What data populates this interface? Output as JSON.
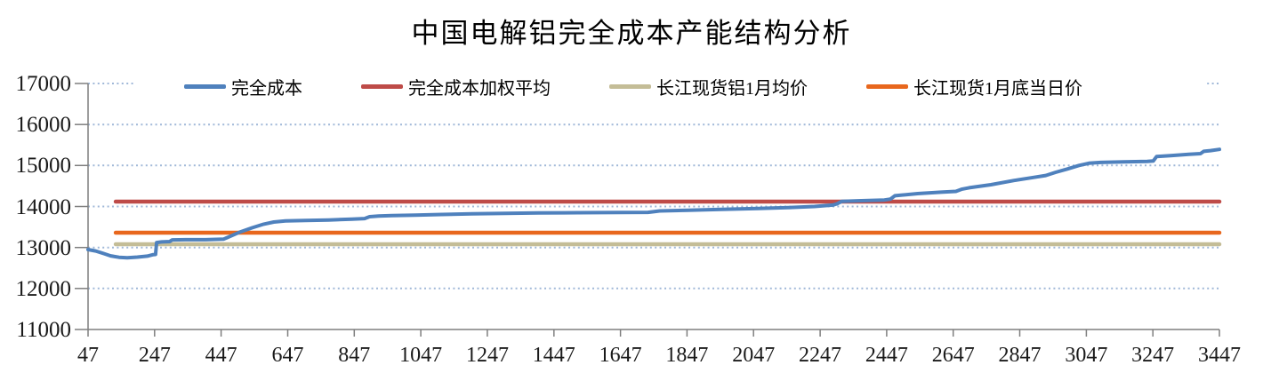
{
  "title": "中国电解铝完全成本产能结构分析",
  "colors": {
    "series_blue": "#4F81BD",
    "series_red": "#BE4B48",
    "series_tan": "#C4BD97",
    "series_orange": "#E8671D",
    "gridline": "#A0B8D8",
    "axis": "#7F7F7F",
    "tick_label": "#1a1a1a",
    "background": "#FFFFFF"
  },
  "chart_data": {
    "type": "line",
    "title": "中国电解铝完全成本产能结构分析",
    "xlabel": "",
    "ylabel": "",
    "xlim": [
      47,
      3447
    ],
    "ylim": [
      11000,
      17000
    ],
    "x_ticks": [
      47,
      247,
      447,
      647,
      847,
      1047,
      1247,
      1447,
      1647,
      1847,
      2047,
      2247,
      2447,
      2647,
      2847,
      3047,
      3247,
      3447
    ],
    "y_ticks": [
      11000,
      12000,
      13000,
      14000,
      15000,
      16000,
      17000
    ],
    "grid": "horizontal dotted light-blue",
    "legend_position": "top",
    "series": [
      {
        "name": "完全成本",
        "color": "#4F81BD",
        "kind": "curve",
        "points": [
          [
            47,
            12950
          ],
          [
            70,
            12915
          ],
          [
            95,
            12850
          ],
          [
            115,
            12795
          ],
          [
            140,
            12760
          ],
          [
            165,
            12750
          ],
          [
            195,
            12765
          ],
          [
            225,
            12790
          ],
          [
            243,
            12825
          ],
          [
            250,
            12830
          ],
          [
            253,
            13120
          ],
          [
            268,
            13135
          ],
          [
            292,
            13145
          ],
          [
            300,
            13185
          ],
          [
            340,
            13190
          ],
          [
            400,
            13190
          ],
          [
            455,
            13205
          ],
          [
            472,
            13265
          ],
          [
            505,
            13380
          ],
          [
            540,
            13480
          ],
          [
            575,
            13570
          ],
          [
            605,
            13620
          ],
          [
            640,
            13650
          ],
          [
            700,
            13660
          ],
          [
            770,
            13670
          ],
          [
            840,
            13690
          ],
          [
            878,
            13705
          ],
          [
            893,
            13750
          ],
          [
            920,
            13765
          ],
          [
            960,
            13780
          ],
          [
            1030,
            13790
          ],
          [
            1110,
            13805
          ],
          [
            1200,
            13820
          ],
          [
            1300,
            13833
          ],
          [
            1400,
            13842
          ],
          [
            1520,
            13848
          ],
          [
            1650,
            13852
          ],
          [
            1730,
            13858
          ],
          [
            1765,
            13892
          ],
          [
            1850,
            13910
          ],
          [
            1950,
            13928
          ],
          [
            2060,
            13950
          ],
          [
            2150,
            13972
          ],
          [
            2230,
            14000
          ],
          [
            2285,
            14035
          ],
          [
            2298,
            14065
          ],
          [
            2312,
            14125
          ],
          [
            2370,
            14140
          ],
          [
            2440,
            14158
          ],
          [
            2458,
            14180
          ],
          [
            2472,
            14262
          ],
          [
            2540,
            14315
          ],
          [
            2610,
            14348
          ],
          [
            2655,
            14368
          ],
          [
            2672,
            14420
          ],
          [
            2695,
            14458
          ],
          [
            2760,
            14530
          ],
          [
            2830,
            14635
          ],
          [
            2890,
            14710
          ],
          [
            2925,
            14755
          ],
          [
            2955,
            14835
          ],
          [
            2990,
            14915
          ],
          [
            3025,
            15000
          ],
          [
            3055,
            15055
          ],
          [
            3090,
            15075
          ],
          [
            3160,
            15088
          ],
          [
            3230,
            15098
          ],
          [
            3248,
            15110
          ],
          [
            3258,
            15218
          ],
          [
            3300,
            15240
          ],
          [
            3355,
            15272
          ],
          [
            3390,
            15288
          ],
          [
            3400,
            15345
          ],
          [
            3420,
            15362
          ],
          [
            3447,
            15392
          ]
        ]
      },
      {
        "name": "完全成本加权平均",
        "color": "#BE4B48",
        "kind": "constant",
        "value": 14120,
        "x_start": 130,
        "x_end": 3447
      },
      {
        "name": "长江现货铝1月均价",
        "color": "#C4BD97",
        "kind": "constant",
        "value": 13080,
        "x_start": 130,
        "x_end": 3447
      },
      {
        "name": "长江现货1月底当日价",
        "color": "#E8671D",
        "kind": "constant",
        "value": 13360,
        "x_start": 130,
        "x_end": 3447
      }
    ]
  }
}
